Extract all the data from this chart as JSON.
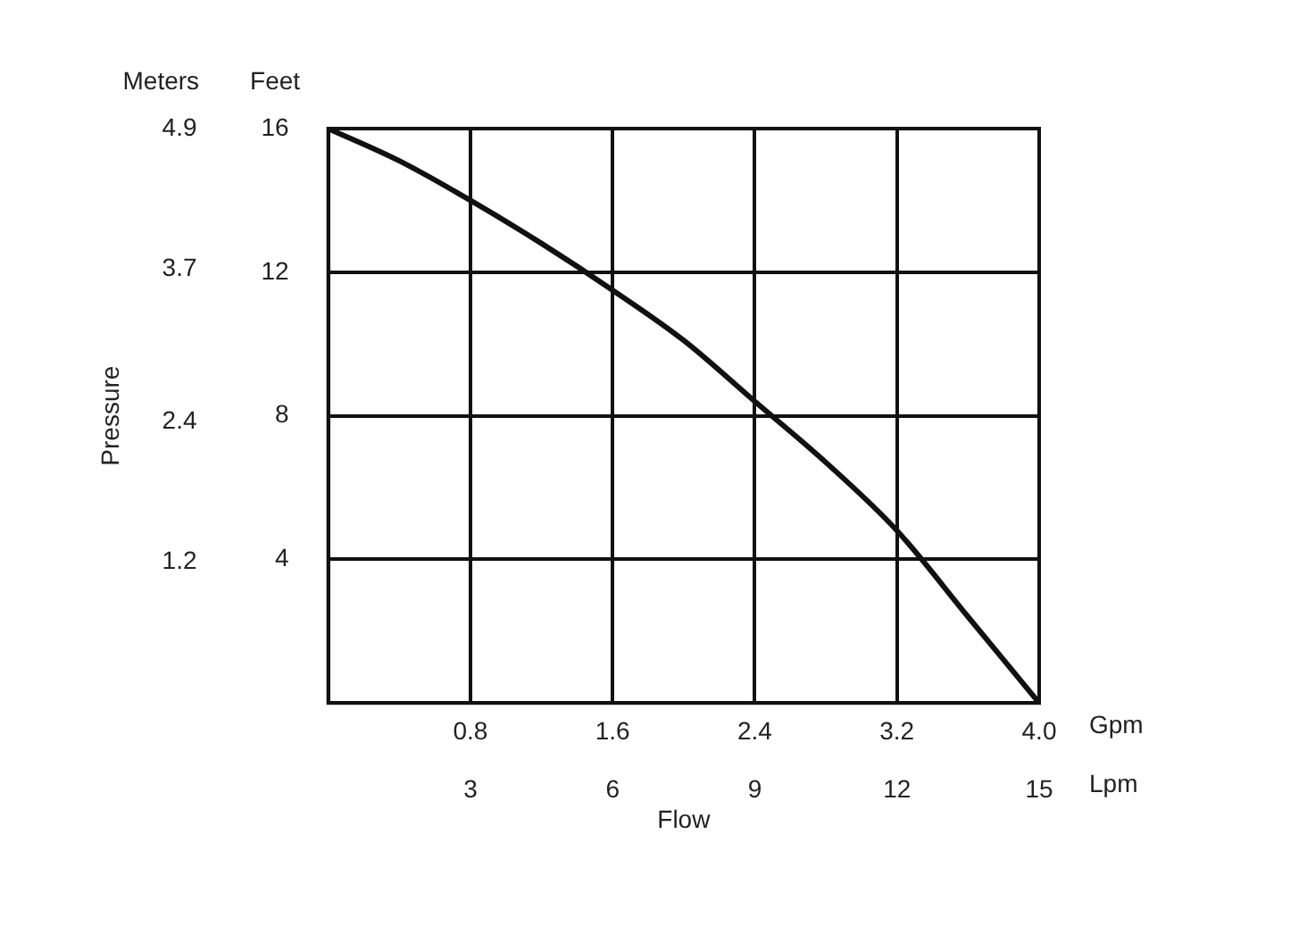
{
  "chart_data": {
    "type": "line",
    "xlabel": "Flow",
    "ylabel": "Pressure",
    "annotations": [
      "Meters",
      "Feet",
      "Gpm",
      "Lpm"
    ],
    "x": [
      0,
      0.4,
      0.8,
      1.2,
      1.6,
      2.0,
      2.4,
      2.8,
      3.2,
      3.6,
      4.0
    ],
    "series": [
      {
        "color": "#111111",
        "axis": "y2",
        "values": [
          16,
          15.1,
          14,
          12.8,
          11.5,
          10.1,
          8.4,
          6.7,
          4.8,
          2.4,
          0
        ]
      }
    ],
    "xlim": [
      0,
      4.0
    ],
    "xticks": [
      {
        "value": 0.8,
        "label": "0.8"
      },
      {
        "value": 1.6,
        "label": "1.6"
      },
      {
        "value": 2.4,
        "label": "2.4"
      },
      {
        "value": 3.2,
        "label": "3.2"
      },
      {
        "value": 4.0,
        "label": "4.0"
      }
    ],
    "x2lim": [
      0,
      15
    ],
    "x2ticks": [
      3,
      6,
      9,
      12,
      15
    ],
    "ylim": [
      0,
      4.9
    ],
    "yticks": [
      1.2,
      2.4,
      3.7,
      4.9
    ],
    "y2lim": [
      0,
      16
    ],
    "y2ticks": [
      4,
      8,
      12,
      16
    ],
    "grid": true,
    "marker": "none",
    "line_style": "solid"
  }
}
